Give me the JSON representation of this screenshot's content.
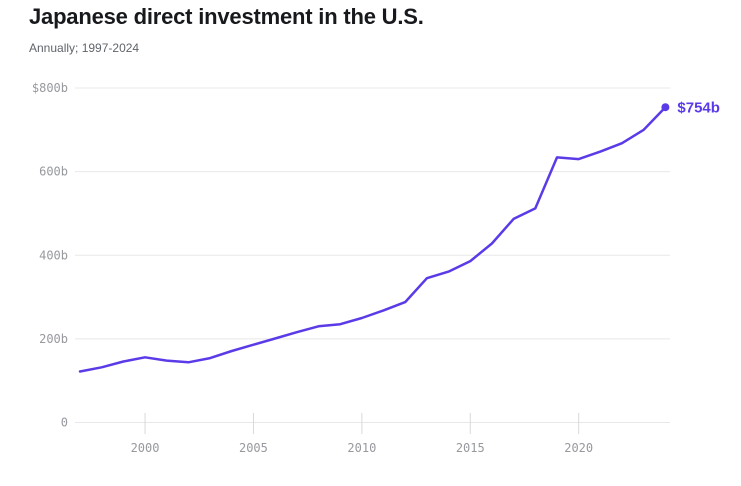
{
  "header": {
    "title": "Japanese direct investment in the U.S.",
    "subtitle": "Annually; 1997-2024"
  },
  "chart_data": {
    "type": "line",
    "title": "Japanese direct investment in the U.S.",
    "subtitle": "Annually; 1997-2024",
    "unit_hint": "billions of U.S. dollars",
    "x": [
      1997,
      1998,
      1999,
      2000,
      2001,
      2002,
      2003,
      2004,
      2005,
      2006,
      2007,
      2008,
      2009,
      2010,
      2011,
      2012,
      2013,
      2014,
      2015,
      2016,
      2017,
      2018,
      2019,
      2020,
      2021,
      2022,
      2023,
      2024
    ],
    "values": [
      122,
      132,
      146,
      156,
      148,
      144,
      154,
      171,
      186,
      201,
      216,
      230,
      235,
      250,
      268,
      288,
      345,
      361,
      386,
      428,
      487,
      512,
      634,
      630,
      648,
      668,
      700,
      754
    ],
    "xlim": [
      1997,
      2024
    ],
    "ylim": [
      0,
      800
    ],
    "grid": true,
    "legend_position": "none",
    "y_ticks": [
      {
        "value": 800,
        "label": "$800b"
      },
      {
        "value": 600,
        "label": "600b"
      },
      {
        "value": 400,
        "label": "400b"
      },
      {
        "value": 200,
        "label": "200b"
      },
      {
        "value": 0,
        "label": "0"
      }
    ],
    "x_ticks": [
      {
        "value": 2000,
        "label": "2000"
      },
      {
        "value": 2005,
        "label": "2005"
      },
      {
        "value": 2010,
        "label": "2010"
      },
      {
        "value": 2015,
        "label": "2015"
      },
      {
        "value": 2020,
        "label": "2020"
      }
    ],
    "end_label": "$754b",
    "colors": {
      "line": "#5b3be8",
      "marker": "#5b3be8",
      "annotation": "#5b3be8",
      "grid": "#e8e8ea",
      "tick": "#d9d9db",
      "axis_text": "#97999e",
      "title": "#17191d",
      "subtitle": "#60656b"
    }
  }
}
